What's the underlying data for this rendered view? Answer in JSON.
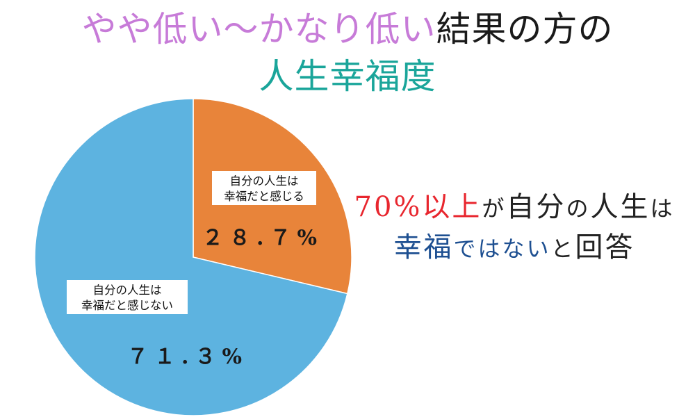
{
  "colors": {
    "title_purple": "#c77bd8",
    "title_black": "#1a1a1a",
    "title_teal": "#1aa59a",
    "red": "#e8262e",
    "blue": "#1d4f91",
    "dark": "#222222",
    "slice_happy": "#e8843a",
    "slice_unhappy": "#5db3e0"
  },
  "title": {
    "line1_part1": "やや低い〜かなり低い",
    "line1_part2": "結果の方の",
    "line2": "人生幸福度"
  },
  "side_note": {
    "r1_a": "70%以上",
    "r1_b": "が",
    "r1_c": "自分",
    "r1_d": "の",
    "r1_e": "人生",
    "r1_f": "は",
    "r2_a": "幸福",
    "r2_b": "ではない",
    "r2_c": "と",
    "r2_d": "回答"
  },
  "chart_data": {
    "type": "pie",
    "title": "",
    "slices": [
      {
        "label_line1": "自分の人生は",
        "label_line2": "幸福だと感じる",
        "value": 28.7,
        "display": "２８.７%",
        "color": "#e8843a"
      },
      {
        "label_line1": "自分の人生は",
        "label_line2": "幸福だと感じない",
        "value": 71.3,
        "display": "７１.３%",
        "color": "#5db3e0"
      }
    ]
  }
}
